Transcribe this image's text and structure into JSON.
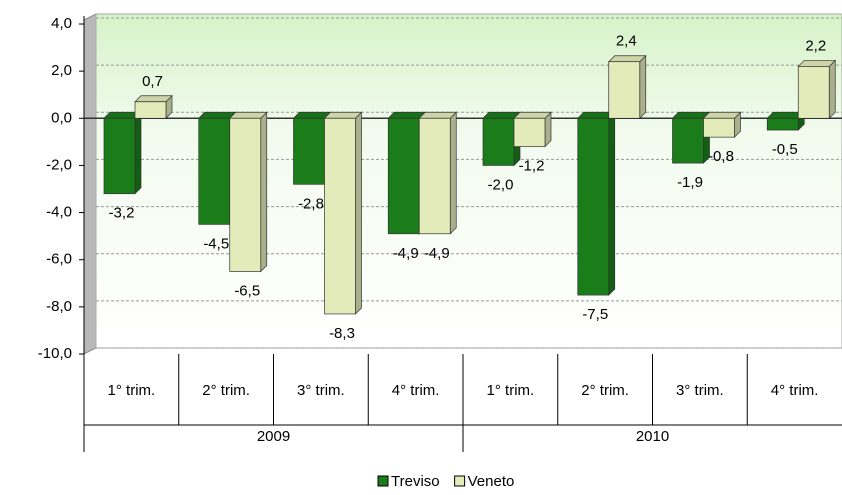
{
  "chart_data": {
    "type": "bar",
    "categories": [
      "1° trim.",
      "2° trim.",
      "3° trim.",
      "4° trim.",
      "1° trim.",
      "2° trim.",
      "3° trim.",
      "4° trim."
    ],
    "category_groups": [
      "2009",
      "2010"
    ],
    "series": [
      {
        "name": "Treviso",
        "color": "#1a7d1a",
        "values": [
          -3.2,
          -4.5,
          -2.8,
          -4.9,
          -2.0,
          -7.5,
          -1.9,
          -0.5
        ],
        "value_labels": [
          "-3,2",
          "-4,5",
          "-2,8",
          "-4,9",
          "-2,0",
          "-7,5",
          "-1,9",
          "-0,5"
        ]
      },
      {
        "name": "Veneto",
        "color": "#e4ebbb",
        "values": [
          0.7,
          -6.5,
          -8.3,
          -4.9,
          -1.2,
          2.4,
          -0.8,
          2.2
        ],
        "value_labels": [
          "0,7",
          "-6,5",
          "-8,3",
          "-4,9",
          "-1,2",
          "2,4",
          "-0,8",
          "2,2"
        ]
      }
    ],
    "ylim": [
      -10,
      4
    ],
    "yticks": [
      {
        "value": -10,
        "label": "-10,0"
      },
      {
        "value": -8,
        "label": "-8,0"
      },
      {
        "value": -6,
        "label": "-6,0"
      },
      {
        "value": -4,
        "label": "-4,0"
      },
      {
        "value": -2,
        "label": "-2,0"
      },
      {
        "value": 0,
        "label": "0,0"
      },
      {
        "value": 2,
        "label": "2,0"
      },
      {
        "value": 4,
        "label": "4,0"
      }
    ],
    "grid": true,
    "legend": "bottom"
  }
}
